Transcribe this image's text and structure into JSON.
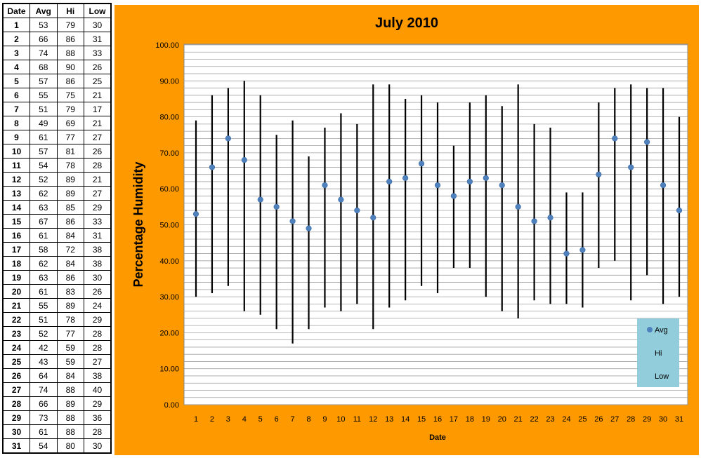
{
  "table": {
    "headers": [
      "Date",
      "Avg",
      "Hi",
      "Low"
    ]
  },
  "chart_data": {
    "type": "scatter",
    "title": "July 2010",
    "xlabel": "Date",
    "ylabel": "Percentage Humidity",
    "ylim": [
      0,
      100
    ],
    "y_ticks": [
      "0.00",
      "10.00",
      "20.00",
      "30.00",
      "40.00",
      "50.00",
      "60.00",
      "70.00",
      "80.00",
      "90.00",
      "100.00"
    ],
    "grid": true,
    "legend_position": "bottom-right",
    "legend": [
      "Avg",
      "Hi",
      "Low"
    ],
    "colors": {
      "avg": "#4f81bd",
      "bar": "#000000",
      "background": "#ff9900",
      "plot": "#ffffff",
      "legend": "#92cddc"
    },
    "x": [
      1,
      2,
      3,
      4,
      5,
      6,
      7,
      8,
      9,
      10,
      11,
      12,
      13,
      14,
      15,
      16,
      17,
      18,
      19,
      20,
      21,
      22,
      23,
      24,
      25,
      26,
      27,
      28,
      29,
      30,
      31
    ],
    "series": [
      {
        "name": "Avg",
        "values": [
          53,
          66,
          74,
          68,
          57,
          55,
          51,
          49,
          61,
          57,
          54,
          52,
          62,
          63,
          67,
          61,
          58,
          62,
          63,
          61,
          55,
          51,
          52,
          42,
          43,
          64,
          74,
          66,
          73,
          61,
          54
        ]
      },
      {
        "name": "Hi",
        "values": [
          79,
          86,
          88,
          90,
          86,
          75,
          79,
          69,
          77,
          81,
          78,
          89,
          89,
          85,
          86,
          84,
          72,
          84,
          86,
          83,
          89,
          78,
          77,
          59,
          59,
          84,
          88,
          89,
          88,
          88,
          80
        ]
      },
      {
        "name": "Low",
        "values": [
          30,
          31,
          33,
          26,
          25,
          21,
          17,
          21,
          27,
          26,
          28,
          21,
          27,
          29,
          33,
          31,
          38,
          38,
          30,
          26,
          24,
          29,
          28,
          28,
          27,
          38,
          40,
          29,
          36,
          28,
          30
        ]
      }
    ]
  }
}
